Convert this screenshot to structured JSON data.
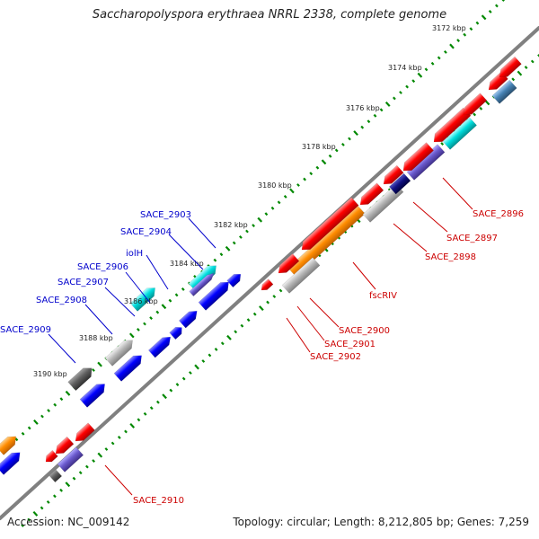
{
  "title": "Saccharopolyspora erythraea NRRL 2338, complete genome",
  "footer": {
    "accession": "Accession: NC_009142",
    "stats": "Topology: circular; Length: 8,212,805 bp; Genes: 7,259"
  },
  "ticks": [
    "3172 kbp",
    "3174 kbp",
    "3176 kbp",
    "3178 kbp",
    "3180 kbp",
    "3182 kbp",
    "3184 kbp",
    "3186 kbp",
    "3188 kbp",
    "3190 kbp"
  ],
  "labels_left": [
    "SACE_2903",
    "SACE_2904",
    "iolH",
    "SACE_2906",
    "SACE_2907",
    "SACE_2908",
    "SACE_2909"
  ],
  "labels_right": [
    "SACE_2896",
    "SACE_2897",
    "SACE_2898",
    "fscRIV",
    "SACE_2900",
    "SACE_2901",
    "SACE_2902",
    "SACE_2910"
  ],
  "colors": {
    "forward": "#0000ff",
    "reverse": "#ff0000",
    "backbone": "#808080",
    "tick_green": "#008800",
    "orange": "#ff8c00",
    "cyan": "#00cccc",
    "purple": "#6a5acd",
    "gray": "#b0b0b0",
    "darkgray": "#606060"
  }
}
